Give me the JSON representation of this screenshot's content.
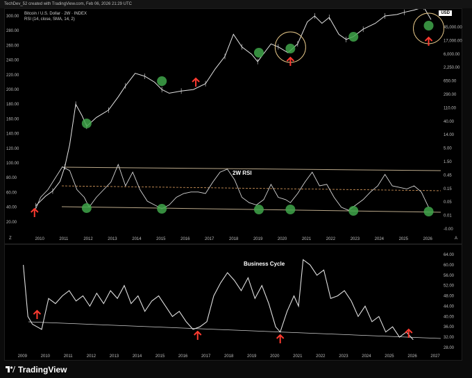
{
  "header": {
    "caption": "TechDev_52 created with TradingView.com, Feb 06, 2026 21:29 UTC"
  },
  "top_panel": {
    "symbol_line": "Bitcoin / U.S. Dollar · 2W · INDEX",
    "indicator_line": "RSI (14, close, SMA, 14, 2)",
    "currency_label": "USD",
    "left_axis_ticks": [
      "300.00",
      "280.00",
      "260.00",
      "240.00",
      "220.00",
      "200.00",
      "180.00",
      "160.00",
      "140.00",
      "120.00",
      "100.00",
      "80.00",
      "60.00",
      "40.00",
      "20.00"
    ],
    "right_axis_ticks": [
      "45,000.00",
      "17,000.00",
      "6,000.00",
      "2,250.00",
      "650.00",
      "290.00",
      "110.00",
      "40.00",
      "14.00",
      "5.00",
      "1.50",
      "0.45",
      "0.15",
      "0.05",
      "0.01",
      "-0.00"
    ],
    "x_axis_years": [
      "2010",
      "2011",
      "2012",
      "2013",
      "2014",
      "2015",
      "2016",
      "2017",
      "2018",
      "2019",
      "2020",
      "2021",
      "2022",
      "2023",
      "2024",
      "2025",
      "2026"
    ],
    "corner_left": "Z",
    "corner_right": "A"
  },
  "bottom_panel": {
    "right_axis_ticks": [
      "64.00",
      "60.00",
      "56.00",
      "52.00",
      "48.00",
      "44.00",
      "40.00",
      "36.00",
      "32.00",
      "28.00"
    ],
    "x_axis_years": [
      "2009",
      "2010",
      "2011",
      "2012",
      "2013",
      "2014",
      "2015",
      "2016",
      "2017",
      "2018",
      "2019",
      "2020",
      "2021",
      "2022",
      "2023",
      "2024",
      "2025",
      "2026",
      "2027"
    ]
  },
  "footer": {
    "brand": "TradingView"
  },
  "colors": {
    "price_line": "#e6e6e6",
    "rsi_line": "#d6d6d6",
    "channel": "#bba98a",
    "midline": "#e0a060",
    "green_marker": "#3fa64a",
    "red_arrow": "#ff3b30",
    "highlight_circle": "#e8c98a"
  },
  "chart_data": [
    {
      "type": "line",
      "title": "",
      "series": [
        {
          "x": [
            2009.8,
            2010.2,
            2010.5,
            2010.8,
            2011.0,
            2011.2,
            2011.45,
            2011.7,
            2011.9,
            2012.3,
            2012.8,
            2013.2,
            2013.5,
            2013.9,
            2014.3,
            2014.7,
            2015.0,
            2015.3,
            2015.8,
            2016.3,
            2016.8,
            2017.2,
            2017.6,
            2017.95,
            2018.3,
            2018.7,
            2018.95,
            2019.5,
            2019.8,
            2020.2,
            2020.6,
            2021.0,
            2021.3,
            2021.6,
            2021.9,
            2022.3,
            2022.6,
            2022.9,
            2023.3,
            2023.8,
            2024.2,
            2024.7,
            2025.0,
            2025.4,
            2025.8,
            2026.1
          ],
          "y": [
            42,
            55,
            62,
            75,
            95,
            125,
            180,
            165,
            150,
            162,
            172,
            190,
            205,
            222,
            218,
            210,
            200,
            195,
            198,
            200,
            208,
            228,
            245,
            275,
            258,
            248,
            238,
            262,
            258,
            250,
            262,
            292,
            300,
            290,
            298,
            275,
            268,
            272,
            282,
            290,
            300,
            302,
            305,
            308,
            312,
            295
          ]
        }
      ]
    },
    {
      "type": "line",
      "title": "2W RSI",
      "ylim": [
        20,
        100
      ],
      "series": [
        {
          "x": [
            2009.8,
            2010.0,
            2010.3,
            2010.6,
            2010.9,
            2011.2,
            2011.5,
            2011.8,
            2012.0,
            2012.3,
            2012.6,
            2012.9,
            2013.2,
            2013.5,
            2013.8,
            2014.1,
            2014.4,
            2014.7,
            2015.0,
            2015.3,
            2015.6,
            2015.9,
            2016.2,
            2016.5,
            2016.8,
            2017.1,
            2017.4,
            2017.7,
            2018.0,
            2018.3,
            2018.6,
            2018.9,
            2019.2,
            2019.5,
            2019.8,
            2020.1,
            2020.3,
            2020.6,
            2020.9,
            2021.2,
            2021.5,
            2021.8,
            2022.1,
            2022.4,
            2022.7,
            2023.0,
            2023.3,
            2023.6,
            2023.9,
            2024.2,
            2024.5,
            2024.8,
            2025.1,
            2025.4,
            2025.7,
            2026.0
          ],
          "y": [
            40,
            55,
            65,
            80,
            95,
            90,
            65,
            55,
            42,
            55,
            65,
            75,
            98,
            70,
            88,
            65,
            50,
            45,
            40,
            45,
            55,
            60,
            62,
            62,
            60,
            75,
            88,
            92,
            78,
            55,
            48,
            45,
            52,
            72,
            55,
            52,
            48,
            60,
            75,
            88,
            70,
            72,
            55,
            42,
            38,
            45,
            52,
            62,
            70,
            85,
            70,
            68,
            66,
            70,
            62,
            42
          ]
        }
      ],
      "annotations": [
        "2W RSI"
      ]
    },
    {
      "type": "line",
      "title": "Business Cycle",
      "ylim": [
        28,
        64
      ],
      "series": [
        {
          "x": [
            2009.0,
            2009.2,
            2009.4,
            2009.6,
            2009.8,
            2010.1,
            2010.4,
            2010.7,
            2011.0,
            2011.3,
            2011.6,
            2011.9,
            2012.2,
            2012.5,
            2012.8,
            2013.1,
            2013.4,
            2013.7,
            2014.0,
            2014.3,
            2014.6,
            2014.9,
            2015.2,
            2015.5,
            2015.8,
            2016.1,
            2016.4,
            2016.7,
            2017.0,
            2017.3,
            2017.6,
            2017.9,
            2018.2,
            2018.5,
            2018.8,
            2019.1,
            2019.4,
            2019.7,
            2020.0,
            2020.2,
            2020.5,
            2020.8,
            2021.0,
            2021.2,
            2021.5,
            2021.8,
            2022.1,
            2022.4,
            2022.7,
            2023.0,
            2023.3,
            2023.6,
            2023.9,
            2024.2,
            2024.5,
            2024.8,
            2025.1,
            2025.4,
            2025.7,
            2026.0
          ],
          "y": [
            60,
            40,
            37,
            36,
            35,
            47,
            45,
            48,
            50,
            46,
            48,
            44,
            49,
            45,
            50,
            47,
            52,
            45,
            48,
            42,
            46,
            48,
            44,
            40,
            42,
            38,
            35,
            36,
            38,
            48,
            53,
            57,
            54,
            50,
            55,
            47,
            52,
            45,
            36,
            34,
            42,
            48,
            44,
            62,
            60,
            56,
            58,
            47,
            48,
            50,
            46,
            40,
            44,
            38,
            40,
            34,
            36,
            32,
            34,
            31
          ]
        }
      ],
      "annotations": [
        "Business Cycle"
      ]
    }
  ]
}
